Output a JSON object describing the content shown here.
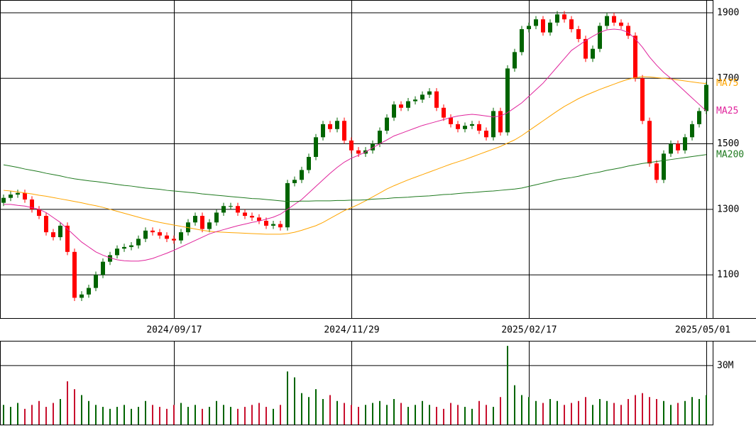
{
  "chart_data": {
    "type": "candlestick",
    "categories": [
      null,
      null,
      null,
      null,
      null,
      null,
      null,
      null,
      null,
      null,
      null,
      null,
      null,
      null,
      null,
      null,
      null,
      null,
      null,
      null,
      null,
      null,
      null,
      null,
      "2024/09/17",
      null,
      null,
      null,
      null,
      null,
      null,
      null,
      null,
      null,
      null,
      null,
      null,
      null,
      null,
      null,
      null,
      null,
      null,
      null,
      null,
      null,
      null,
      null,
      null,
      "2024/11/29",
      null,
      null,
      null,
      null,
      null,
      null,
      null,
      null,
      null,
      null,
      null,
      null,
      null,
      null,
      null,
      null,
      null,
      null,
      null,
      null,
      null,
      null,
      null,
      null,
      "2025/02/17",
      null,
      null,
      null,
      null,
      null,
      null,
      null,
      null,
      null,
      null,
      null,
      null,
      null,
      null,
      null,
      null,
      null,
      null,
      null,
      null,
      null,
      null,
      null,
      null,
      "2025/05/01"
    ],
    "open": [
      1320,
      1335,
      1345,
      1350,
      1330,
      1300,
      1280,
      1230,
      1215,
      1250,
      1170,
      1030,
      1040,
      1060,
      1100,
      1140,
      1160,
      1180,
      1185,
      1190,
      1210,
      1235,
      1230,
      1220,
      1210,
      1205,
      1230,
      1260,
      1280,
      1240,
      1260,
      1290,
      1310,
      1310,
      1290,
      1280,
      1275,
      1265,
      1250,
      1255,
      1245,
      1380,
      1390,
      1420,
      1460,
      1520,
      1560,
      1545,
      1570,
      1510,
      1480,
      1470,
      1480,
      1500,
      1540,
      1580,
      1620,
      1610,
      1630,
      1635,
      1650,
      1660,
      1610,
      1580,
      1560,
      1545,
      1555,
      1560,
      1540,
      1520,
      1600,
      1535,
      1730,
      1780,
      1850,
      1860,
      1880,
      1840,
      1870,
      1895,
      1880,
      1850,
      1820,
      1760,
      1790,
      1860,
      1890,
      1870,
      1860,
      1830,
      1700,
      1570,
      1440,
      1390,
      1470,
      1500,
      1480,
      1520,
      1560,
      1600
    ],
    "high": [
      1345,
      1355,
      1360,
      1360,
      1340,
      1310,
      1290,
      1240,
      1260,
      1260,
      1180,
      1050,
      1070,
      1110,
      1150,
      1170,
      1190,
      1195,
      1200,
      1220,
      1245,
      1245,
      1240,
      1230,
      1220,
      1240,
      1270,
      1290,
      1290,
      1270,
      1300,
      1320,
      1320,
      1320,
      1300,
      1290,
      1285,
      1275,
      1265,
      1265,
      1390,
      1400,
      1430,
      1470,
      1530,
      1570,
      1570,
      1580,
      1580,
      1520,
      1490,
      1490,
      1510,
      1550,
      1590,
      1630,
      1630,
      1640,
      1645,
      1660,
      1670,
      1670,
      1620,
      1590,
      1570,
      1565,
      1570,
      1570,
      1550,
      1610,
      1610,
      1740,
      1790,
      1860,
      1870,
      1890,
      1890,
      1880,
      1905,
      1905,
      1890,
      1860,
      1830,
      1800,
      1870,
      1900,
      1900,
      1880,
      1870,
      1840,
      1710,
      1580,
      1450,
      1480,
      1510,
      1510,
      1530,
      1570,
      1610,
      1690
    ],
    "low": [
      1310,
      1325,
      1335,
      1320,
      1290,
      1270,
      1220,
      1205,
      1205,
      1160,
      1020,
      1020,
      1030,
      1050,
      1090,
      1130,
      1150,
      1170,
      1175,
      1180,
      1200,
      1220,
      1210,
      1200,
      1195,
      1195,
      1220,
      1250,
      1230,
      1230,
      1250,
      1280,
      1300,
      1280,
      1270,
      1265,
      1255,
      1240,
      1240,
      1235,
      1235,
      1370,
      1380,
      1410,
      1450,
      1510,
      1535,
      1535,
      1500,
      1470,
      1460,
      1460,
      1470,
      1490,
      1530,
      1570,
      1600,
      1600,
      1620,
      1625,
      1640,
      1600,
      1570,
      1550,
      1535,
      1535,
      1545,
      1530,
      1510,
      1510,
      1525,
      1525,
      1720,
      1770,
      1840,
      1850,
      1830,
      1830,
      1860,
      1870,
      1840,
      1810,
      1750,
      1750,
      1780,
      1850,
      1860,
      1850,
      1820,
      1690,
      1560,
      1430,
      1380,
      1380,
      1460,
      1470,
      1470,
      1510,
      1550,
      1590
    ],
    "close": [
      1335,
      1345,
      1350,
      1330,
      1300,
      1280,
      1230,
      1215,
      1250,
      1170,
      1030,
      1040,
      1060,
      1100,
      1140,
      1160,
      1180,
      1185,
      1190,
      1210,
      1235,
      1230,
      1220,
      1210,
      1205,
      1230,
      1260,
      1280,
      1240,
      1260,
      1290,
      1310,
      1310,
      1290,
      1280,
      1275,
      1265,
      1250,
      1255,
      1245,
      1380,
      1390,
      1420,
      1460,
      1520,
      1560,
      1545,
      1570,
      1510,
      1480,
      1470,
      1480,
      1500,
      1540,
      1580,
      1620,
      1610,
      1630,
      1635,
      1650,
      1660,
      1610,
      1580,
      1560,
      1545,
      1555,
      1560,
      1540,
      1520,
      1600,
      1535,
      1730,
      1780,
      1850,
      1860,
      1880,
      1840,
      1870,
      1895,
      1880,
      1850,
      1820,
      1760,
      1790,
      1860,
      1890,
      1870,
      1860,
      1830,
      1700,
      1570,
      1440,
      1390,
      1470,
      1500,
      1480,
      1520,
      1560,
      1600,
      1680
    ],
    "volume": [
      10,
      9,
      11,
      8,
      10,
      12,
      9,
      11,
      13,
      22,
      18,
      15,
      12,
      10,
      9,
      8,
      9,
      10,
      8,
      9,
      12,
      10,
      9,
      8,
      10,
      11,
      9,
      10,
      8,
      9,
      12,
      10,
      9,
      8,
      9,
      10,
      11,
      9,
      8,
      10,
      27,
      24,
      16,
      14,
      18,
      13,
      15,
      12,
      11,
      10,
      9,
      10,
      11,
      12,
      10,
      13,
      11,
      9,
      10,
      12,
      10,
      9,
      8,
      11,
      10,
      9,
      8,
      12,
      10,
      9,
      14,
      40,
      20,
      15,
      14,
      12,
      11,
      13,
      12,
      10,
      11,
      12,
      14,
      10,
      13,
      12,
      11,
      10,
      13,
      15,
      16,
      14,
      13,
      12,
      10,
      11,
      12,
      14,
      13,
      15
    ],
    "up_color": "#006400",
    "down_color": "#ff0000",
    "volume_color": "#c8102e",
    "series": [
      {
        "name": "MA75",
        "color": "#ffa500",
        "values": [
          1358,
          1356,
          1353,
          1350,
          1347,
          1343,
          1340,
          1336,
          1332,
          1328,
          1324,
          1320,
          1315,
          1311,
          1306,
          1300,
          1294,
          1288,
          1282,
          1276,
          1270,
          1265,
          1260,
          1256,
          1252,
          1248,
          1244,
          1240,
          1236,
          1233,
          1231,
          1230,
          1229,
          1228,
          1227,
          1226,
          1225,
          1224,
          1224,
          1224,
          1226,
          1230,
          1236,
          1243,
          1250,
          1260,
          1272,
          1284,
          1296,
          1305,
          1315,
          1326,
          1338,
          1350,
          1362,
          1372,
          1381,
          1390,
          1398,
          1406,
          1414,
          1422,
          1430,
          1438,
          1445,
          1452,
          1460,
          1468,
          1476,
          1484,
          1492,
          1502,
          1512,
          1525,
          1540,
          1555,
          1570,
          1585,
          1600,
          1614,
          1626,
          1638,
          1648,
          1657,
          1666,
          1674,
          1682,
          1690,
          1697,
          1702,
          1705,
          1704,
          1702,
          1700,
          1698,
          1695,
          1692,
          1689,
          1686,
          1684
        ]
      },
      {
        "name": "MA25",
        "color": "#e0249c",
        "values": [
          1315,
          1315,
          1312,
          1310,
          1305,
          1300,
          1290,
          1275,
          1260,
          1240,
          1220,
          1200,
          1185,
          1170,
          1160,
          1152,
          1146,
          1143,
          1142,
          1142,
          1145,
          1150,
          1158,
          1166,
          1175,
          1185,
          1195,
          1205,
          1215,
          1225,
          1232,
          1238,
          1244,
          1250,
          1255,
          1260,
          1264,
          1270,
          1276,
          1285,
          1300,
          1315,
          1330,
          1350,
          1370,
          1390,
          1410,
          1428,
          1444,
          1456,
          1465,
          1475,
          1488,
          1500,
          1512,
          1524,
          1532,
          1540,
          1548,
          1556,
          1562,
          1568,
          1574,
          1580,
          1585,
          1588,
          1590,
          1588,
          1585,
          1582,
          1585,
          1595,
          1610,
          1625,
          1645,
          1665,
          1685,
          1710,
          1735,
          1760,
          1785,
          1800,
          1815,
          1828,
          1840,
          1848,
          1850,
          1848,
          1840,
          1820,
          1795,
          1765,
          1740,
          1718,
          1700,
          1680,
          1660,
          1640,
          1620,
          1600
        ]
      },
      {
        "name": "MA200",
        "color": "#1f7a1f",
        "values": [
          1436,
          1432,
          1428,
          1423,
          1419,
          1415,
          1410,
          1406,
          1402,
          1397,
          1393,
          1390,
          1387,
          1385,
          1382,
          1379,
          1376,
          1373,
          1371,
          1368,
          1365,
          1363,
          1361,
          1358,
          1356,
          1354,
          1352,
          1350,
          1347,
          1345,
          1343,
          1341,
          1339,
          1337,
          1335,
          1333,
          1332,
          1330,
          1328,
          1326,
          1324,
          1324,
          1325,
          1325,
          1326,
          1326,
          1326,
          1327,
          1327,
          1328,
          1328,
          1329,
          1331,
          1332,
          1333,
          1335,
          1336,
          1337,
          1339,
          1340,
          1341,
          1343,
          1345,
          1346,
          1348,
          1350,
          1351,
          1353,
          1355,
          1356,
          1358,
          1360,
          1362,
          1365,
          1370,
          1375,
          1380,
          1385,
          1390,
          1394,
          1397,
          1401,
          1406,
          1410,
          1414,
          1419,
          1423,
          1427,
          1432,
          1436,
          1440,
          1443,
          1446,
          1449,
          1452,
          1455,
          1458,
          1461,
          1464,
          1467
        ]
      }
    ],
    "ylim": [
      968,
      1939
    ],
    "yticks": [
      1100,
      1300,
      1500,
      1700,
      1900
    ],
    "volume_ylim": [
      0,
      42.6
    ],
    "volume_yticks": [
      {
        "value": 30,
        "label": "30M"
      }
    ],
    "grid": true
  }
}
